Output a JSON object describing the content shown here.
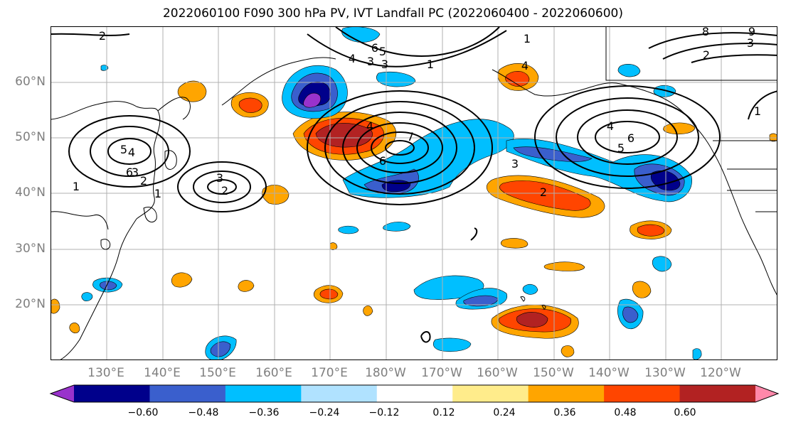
{
  "title": "2022060100 F090 300 hPa PV, IVT Landfall PC (2022060400 - 2022060600)",
  "lat_labels": [
    "60°N",
    "50°N",
    "40°N",
    "30°N",
    "20°N"
  ],
  "lon_labels": [
    "130°E",
    "140°E",
    "150°E",
    "160°E",
    "170°E",
    "180°W",
    "170°W",
    "160°W",
    "150°W",
    "140°W",
    "130°W",
    "120°W"
  ],
  "contour_labels": [
    "2",
    "4",
    "3",
    "2",
    "6",
    "5",
    "1",
    "1",
    "3",
    "2",
    "3",
    "4",
    "3",
    "1",
    "1",
    "4",
    "7",
    "6",
    "3",
    "2",
    "4",
    "5",
    "6",
    "1",
    "8",
    "9",
    "2",
    "3",
    "6",
    "5",
    "4"
  ],
  "colorbar": {
    "colors": [
      "#9932cc",
      "#00008b",
      "#3a5fcd",
      "#00bfff",
      "#b0e2ff",
      "#ffffff",
      "#ffec8b",
      "#ffa500",
      "#ff4500",
      "#b22222",
      "#ff88aa"
    ],
    "tick_labels": [
      "−0.60",
      "−0.48",
      "−0.36",
      "−0.24",
      "−0.12",
      "0.12",
      "0.24",
      "0.36",
      "0.48",
      "0.60"
    ]
  },
  "colors": {
    "gridline": "#b0b0b0",
    "contour": "#000000",
    "coastline": "#000000",
    "axis_label": "#7f7f7f"
  }
}
